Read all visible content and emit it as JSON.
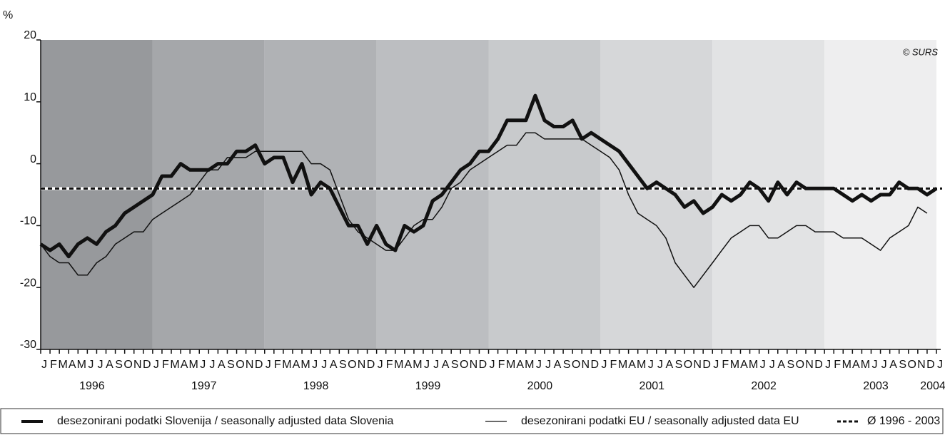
{
  "chart_data": {
    "type": "line",
    "y_unit": "%",
    "copyright": "© SURS",
    "categories": [
      "J",
      "F",
      "M",
      "A",
      "M",
      "J",
      "J",
      "A",
      "S",
      "O",
      "N",
      "D",
      "J",
      "F",
      "M",
      "A",
      "M",
      "J",
      "J",
      "A",
      "S",
      "O",
      "N",
      "D",
      "J",
      "F",
      "M",
      "A",
      "M",
      "J",
      "J",
      "A",
      "S",
      "O",
      "N",
      "D",
      "J",
      "F",
      "M",
      "A",
      "M",
      "J",
      "J",
      "A",
      "S",
      "O",
      "N",
      "D",
      "J",
      "F",
      "M",
      "A",
      "M",
      "J",
      "J",
      "A",
      "S",
      "O",
      "N",
      "D",
      "J",
      "F",
      "M",
      "A",
      "M",
      "J",
      "J",
      "A",
      "S",
      "O",
      "N",
      "D",
      "J",
      "F",
      "M",
      "A",
      "M",
      "J",
      "J",
      "A",
      "S",
      "O",
      "N",
      "D",
      "J",
      "F",
      "M",
      "A",
      "M",
      "J",
      "J",
      "A",
      "S",
      "O",
      "N",
      "D",
      "J"
    ],
    "years": [
      "1996",
      "1997",
      "1998",
      "1999",
      "2000",
      "2001",
      "2002",
      "2003",
      "2004"
    ],
    "year_band_colors": [
      "#97999c",
      "#a5a7aa",
      "#b0b2b5",
      "#bcbec1",
      "#c8cacc",
      "#d6d7d9",
      "#e2e3e4",
      "#eeeeef"
    ],
    "series": [
      {
        "name": "desezonirani podatki Slovenija / seasonally adjusted data Slovenia",
        "color": "#111111",
        "width": 5,
        "values": [
          -13,
          -14,
          -13,
          -15,
          -13,
          -12,
          -13,
          -11,
          -10,
          -8,
          -7,
          -6,
          -5,
          -2,
          -2,
          0,
          -1,
          -1,
          -1,
          0,
          0,
          2,
          2,
          3,
          0,
          1,
          1,
          -3,
          0,
          -5,
          -3,
          -4,
          -7,
          -10,
          -10,
          -13,
          -10,
          -13,
          -14,
          -10,
          -11,
          -10,
          -6,
          -5,
          -3,
          -1,
          0,
          2,
          2,
          4,
          7,
          7,
          7,
          11,
          7,
          6,
          6,
          7,
          4,
          5,
          4,
          3,
          2,
          0,
          -2,
          -4,
          -3,
          -4,
          -5,
          -7,
          -6,
          -8,
          -7,
          -5,
          -6,
          -5,
          -3,
          -4,
          -6,
          -3,
          -5,
          -3,
          -4,
          -4,
          -4,
          -4,
          -5,
          -6,
          -5,
          -6,
          -5,
          -5,
          -3,
          -4,
          -4,
          -5,
          -4
        ]
      },
      {
        "name": "desezonirani podatki EU / seasonally adjusted data EU",
        "color": "#111111",
        "width": 1.5,
        "values": [
          -13,
          -15,
          -16,
          -16,
          -18,
          -18,
          -16,
          -15,
          -13,
          -12,
          -11,
          -11,
          -9,
          -8,
          -7,
          -6,
          -5,
          -3,
          -1,
          -1,
          1,
          1,
          1,
          2,
          2,
          2,
          2,
          2,
          2,
          0,
          0,
          -1,
          -5,
          -9,
          -11,
          -12,
          -13,
          -14,
          -14,
          -12,
          -10,
          -9,
          -9,
          -7,
          -4,
          -3,
          -1,
          0,
          1,
          2,
          3,
          3,
          5,
          5,
          4,
          4,
          4,
          4,
          4,
          3,
          2,
          1,
          -1,
          -5,
          -8,
          -9,
          -10,
          -12,
          -16,
          -18,
          -20,
          -18,
          -16,
          -14,
          -12,
          -11,
          -10,
          -10,
          -12,
          -12,
          -11,
          -10,
          -10,
          -11,
          -11,
          -11,
          -12,
          -12,
          -12,
          -13,
          -14,
          -12,
          -11,
          -10,
          -7,
          -8,
          null
        ]
      }
    ],
    "average": {
      "name": "Ø 1996 - 2003",
      "value": -4
    },
    "ylim": [
      -30,
      20
    ],
    "yticks": [
      -30,
      -20,
      -10,
      0,
      10,
      20
    ]
  }
}
